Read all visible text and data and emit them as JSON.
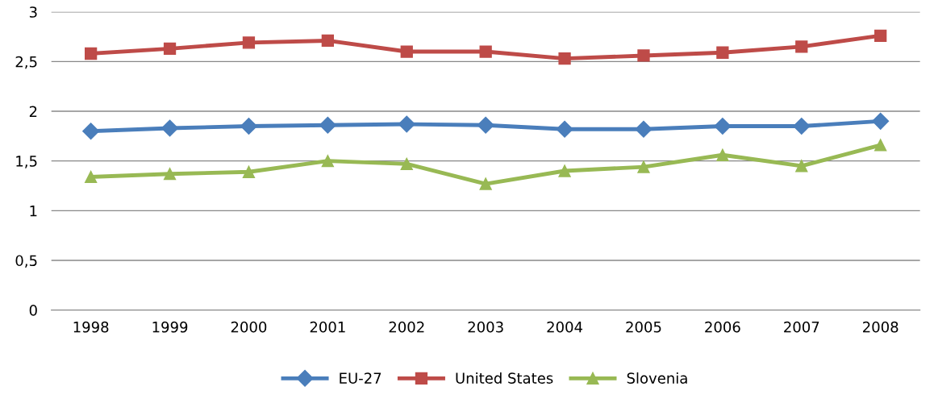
{
  "chart_data": {
    "type": "line",
    "categories": [
      "1998",
      "1999",
      "2000",
      "2001",
      "2002",
      "2003",
      "2004",
      "2005",
      "2006",
      "2007",
      "2008"
    ],
    "series": [
      {
        "name": "EU-27",
        "color": "#4a7ebb",
        "marker": "diamond",
        "values": [
          1.8,
          1.83,
          1.85,
          1.86,
          1.87,
          1.86,
          1.82,
          1.82,
          1.85,
          1.85,
          1.9
        ]
      },
      {
        "name": "United States",
        "color": "#be4b48",
        "marker": "square",
        "values": [
          2.58,
          2.63,
          2.69,
          2.71,
          2.6,
          2.6,
          2.53,
          2.56,
          2.59,
          2.65,
          2.76
        ]
      },
      {
        "name": "Slovenia",
        "color": "#98b954",
        "marker": "triangle",
        "values": [
          1.34,
          1.37,
          1.39,
          1.5,
          1.47,
          1.27,
          1.4,
          1.44,
          1.56,
          1.45,
          1.66
        ]
      }
    ],
    "ylim": [
      0,
      3
    ],
    "yticks": [
      0,
      {
        "value": 0.5,
        "label": "0,5"
      },
      1,
      {
        "value": 1.5,
        "label": "1,5"
      },
      2,
      {
        "value": 2.5,
        "label": "2,5"
      },
      3
    ],
    "grid": "y",
    "legend": "bottom",
    "line_style": "solid"
  }
}
